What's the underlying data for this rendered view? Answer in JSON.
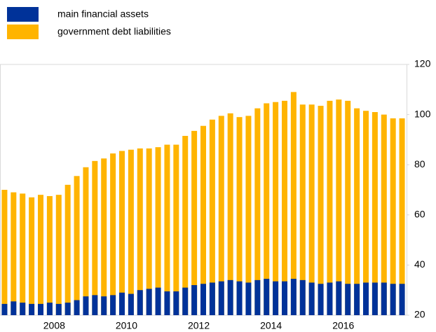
{
  "chart_data": {
    "type": "bar",
    "categories": [
      null,
      null,
      null,
      null,
      null,
      null,
      "2008",
      null,
      null,
      null,
      null,
      null,
      null,
      null,
      "2010",
      null,
      null,
      null,
      null,
      null,
      null,
      null,
      "2012",
      null,
      null,
      null,
      null,
      null,
      null,
      null,
      "2014",
      null,
      null,
      null,
      null,
      null,
      null,
      null,
      "2016",
      null,
      null,
      null,
      null,
      null,
      null
    ],
    "series": [
      {
        "name": "main financial assets",
        "color": "#003299",
        "values": [
          24.5,
          25.5,
          25,
          24.5,
          24.5,
          25,
          24.5,
          25,
          26,
          27.5,
          28,
          27.5,
          28,
          29,
          28.5,
          30,
          30.5,
          31,
          29.5,
          29.5,
          31,
          32,
          32.5,
          33,
          33.5,
          34,
          33.5,
          33,
          34,
          34.5,
          33.5,
          33.5,
          34.5,
          34,
          33,
          32.5,
          33,
          33.5,
          32.5,
          32.5,
          33,
          33,
          33,
          32.5,
          32.5
        ]
      },
      {
        "name": "government debt liabilities",
        "color": "#ffb400",
        "values": [
          70,
          69,
          68.5,
          67,
          68,
          67.5,
          68,
          72,
          75.5,
          79,
          81.5,
          82.5,
          84.5,
          85.5,
          86,
          86.5,
          86.5,
          87,
          88,
          88,
          91.5,
          93.5,
          95.5,
          98,
          99.5,
          100.5,
          99,
          99.5,
          102.5,
          104.5,
          105,
          105.5,
          109,
          104,
          104,
          103.5,
          105.5,
          106,
          105.5,
          102.5,
          101.5,
          101,
          100,
          98.5,
          98.5
        ]
      }
    ],
    "ylim": [
      20,
      120
    ],
    "yticks": [
      20,
      40,
      60,
      80,
      100,
      120
    ]
  }
}
